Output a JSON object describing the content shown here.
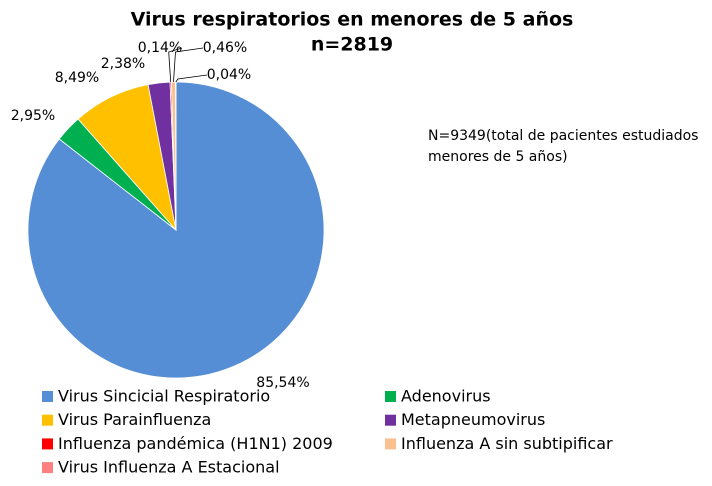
{
  "chart_data": {
    "type": "pie",
    "title": "Virus respiratorios en menores de 5 años",
    "subtitle": "n=2819",
    "annotation": [
      "N=9349(total de pacientes estudiados",
      "menores de 5 años)"
    ],
    "categories": [
      "Virus Sincicial Respiratorio",
      "Adenovirus",
      "Virus Parainfluenza",
      "Metapneumovirus",
      "Influenza pandémica (H1N1) 2009",
      "Influenza A sin subtipificar",
      "Virus Influenza A Estacional"
    ],
    "values": [
      85.54,
      2.95,
      8.49,
      2.38,
      0.14,
      0.46,
      0.04
    ],
    "value_labels": [
      "85,54%",
      "2,95%",
      "8,49%",
      "2,38%",
      "0,14%",
      "0,46%",
      "0,04%"
    ],
    "colors": [
      "#558ed5",
      "#00b050",
      "#ffc000",
      "#7030a0",
      "#ff0000",
      "#fac090",
      "#ff8080"
    ],
    "legend": "bottom"
  }
}
